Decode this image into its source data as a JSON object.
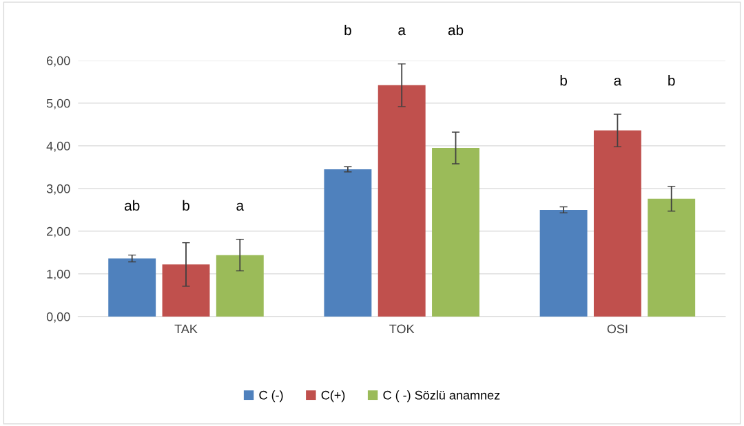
{
  "chart_data": {
    "type": "bar",
    "categories": [
      "TAK",
      "TOK",
      "OSI"
    ],
    "series": [
      {
        "name": "C (-)",
        "color": "#4f81bd",
        "values": [
          1.36,
          3.45,
          2.5
        ],
        "errors": [
          0.08,
          0.06,
          0.07
        ]
      },
      {
        "name": "C(+)",
        "color": "#c0504d",
        "values": [
          1.22,
          5.42,
          4.36
        ],
        "errors": [
          0.51,
          0.5,
          0.38
        ]
      },
      {
        "name": "C ( -) Sözlü anamnez",
        "color": "#9bbb59",
        "values": [
          1.44,
          3.95,
          2.76
        ],
        "errors": [
          0.37,
          0.37,
          0.29
        ]
      }
    ],
    "ylim": [
      0,
      6
    ],
    "yticks": [
      {
        "value": 0,
        "label": "0,00"
      },
      {
        "value": 1,
        "label": "1,00"
      },
      {
        "value": 2,
        "label": "2,00"
      },
      {
        "value": 3,
        "label": "3,00"
      },
      {
        "value": 4,
        "label": "4,00"
      },
      {
        "value": 5,
        "label": "5,00"
      },
      {
        "value": 6,
        "label": "6,00"
      }
    ],
    "grid": "y",
    "legend": "bottom",
    "annotations": [
      "ab",
      "b",
      "a",
      "b",
      "a",
      "ab",
      "b",
      "a",
      "b"
    ]
  }
}
